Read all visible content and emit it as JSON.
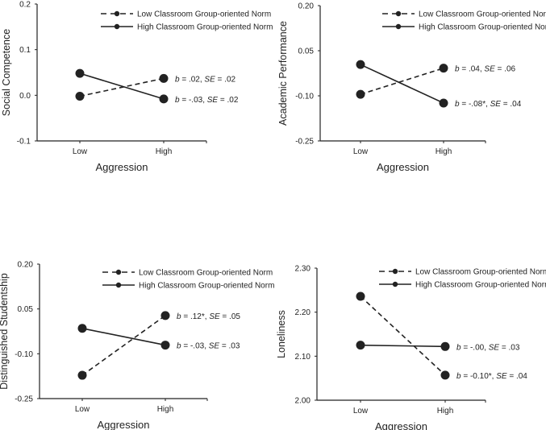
{
  "chart_data": [
    {
      "type": "line",
      "xlabel": "Aggression",
      "ylabel": "Social Competence",
      "categories": [
        "Low",
        "High"
      ],
      "yticks": [
        "0.2",
        "0.1",
        "0.0",
        "-0.1"
      ],
      "ylim": [
        -0.1,
        0.2
      ],
      "legend_position": "top-right",
      "series": [
        {
          "name": "Low Classroom Group-oriented Norm",
          "style": "dashed",
          "values": [
            -0.002,
            0.037
          ],
          "annotation": {
            "b": ".02",
            "se": ".02"
          }
        },
        {
          "name": "High Classroom Group-oriented Norm",
          "style": "solid",
          "values": [
            0.048,
            -0.008
          ],
          "annotation": {
            "b": "-.03",
            "se": ".02"
          }
        }
      ]
    },
    {
      "type": "line",
      "xlabel": "Aggression",
      "ylabel": "Academic Performance",
      "categories": [
        "Low",
        "High"
      ],
      "yticks": [
        "0.20",
        "0.05",
        "-0.10",
        "-0.25"
      ],
      "ylim": [
        -0.25,
        0.2
      ],
      "legend_position": "top-right",
      "series": [
        {
          "name": "Low Classroom Group-oriented Norm",
          "style": "dashed",
          "values": [
            -0.095,
            -0.008
          ],
          "annotation": {
            "b": ".04",
            "se": ".06"
          }
        },
        {
          "name": "High Classroom Group-oriented Norm",
          "style": "solid",
          "values": [
            0.004,
            -0.124
          ],
          "annotation": {
            "b": "-.08*",
            "se": ".04"
          }
        }
      ]
    },
    {
      "type": "line",
      "xlabel": "Aggression",
      "ylabel": "Distinguished Studentship",
      "categories": [
        "Low",
        "High"
      ],
      "yticks": [
        "0.20",
        "0.05",
        "-0.10",
        "-0.25"
      ],
      "ylim": [
        -0.25,
        0.2
      ],
      "legend_position": "top-right",
      "series": [
        {
          "name": "Low Classroom Group-oriented Norm",
          "style": "dashed",
          "values": [
            -0.172,
            0.028
          ],
          "annotation": {
            "b": ".12*",
            "se": ".05"
          }
        },
        {
          "name": "High Classroom Group-oriented Norm",
          "style": "solid",
          "values": [
            -0.015,
            -0.071
          ],
          "annotation": {
            "b": "-.03",
            "se": ".03"
          }
        }
      ]
    },
    {
      "type": "line",
      "xlabel": "Aggression",
      "ylabel": "Loneliness",
      "categories": [
        "Low",
        "High"
      ],
      "yticks": [
        "2.30",
        "2.20",
        "2.10",
        "2.00"
      ],
      "ylim": [
        2.0,
        2.3
      ],
      "legend_position": "top-right",
      "series": [
        {
          "name": "Low Classroom Group-oriented Norm",
          "style": "dashed",
          "values": [
            2.236,
            2.057
          ],
          "annotation": {
            "b": "-0.10*",
            "se": ".04"
          }
        },
        {
          "name": "High Classroom Group-oriented Norm",
          "style": "solid",
          "values": [
            2.125,
            2.122
          ],
          "annotation": {
            "b": "-.00",
            "se": ".03"
          }
        }
      ]
    }
  ]
}
